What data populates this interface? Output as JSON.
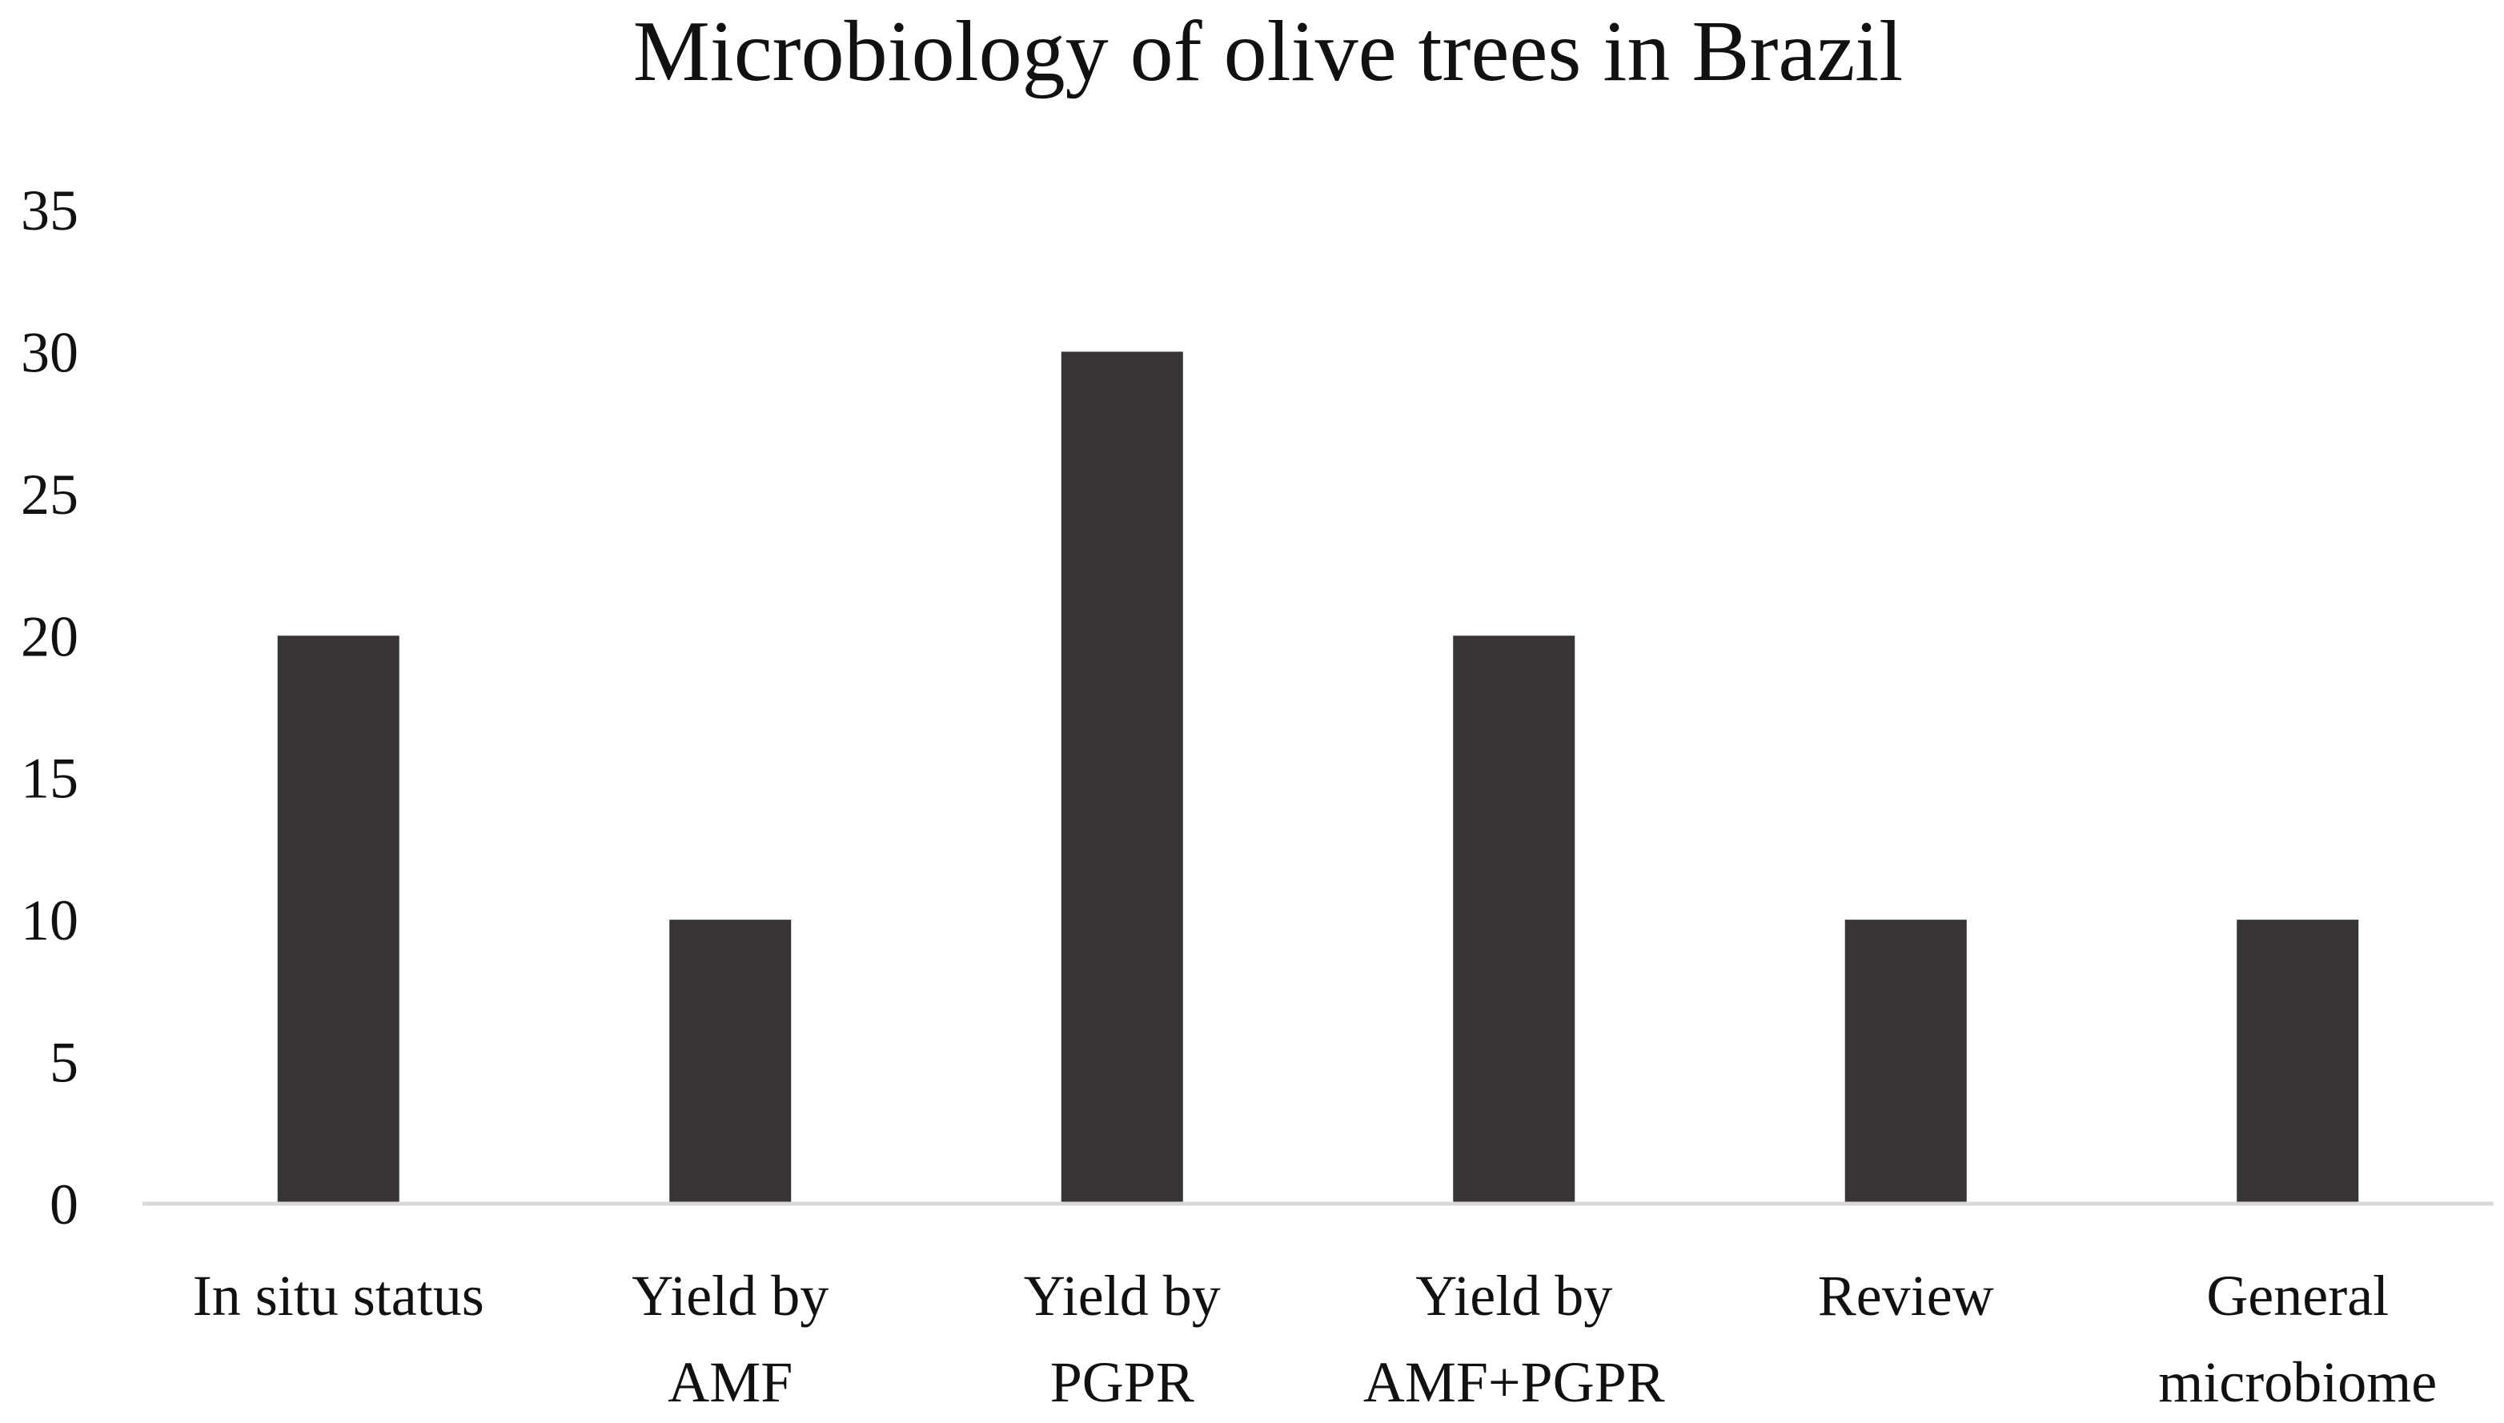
{
  "chart_data": {
    "type": "bar",
    "title": "Microbiology of olive trees in Brazil",
    "xlabel": "",
    "ylabel": "",
    "categories": [
      [
        "In situ status"
      ],
      [
        "Yield by",
        "AMF"
      ],
      [
        "Yield by",
        "PGPR"
      ],
      [
        "Yield by",
        "AMF+PGPR"
      ],
      [
        "Review"
      ],
      [
        "General",
        "microbiome"
      ]
    ],
    "values": [
      20,
      10,
      30,
      20,
      10,
      10
    ],
    "ylim": [
      0,
      35
    ],
    "yticks": [
      "0",
      "5",
      "10",
      "15",
      "20",
      "25",
      "30",
      "35"
    ],
    "grid": false,
    "legend": "none",
    "colors": {
      "bar": "#383433",
      "axis": "#d9d9d9",
      "text": "#111111"
    }
  }
}
